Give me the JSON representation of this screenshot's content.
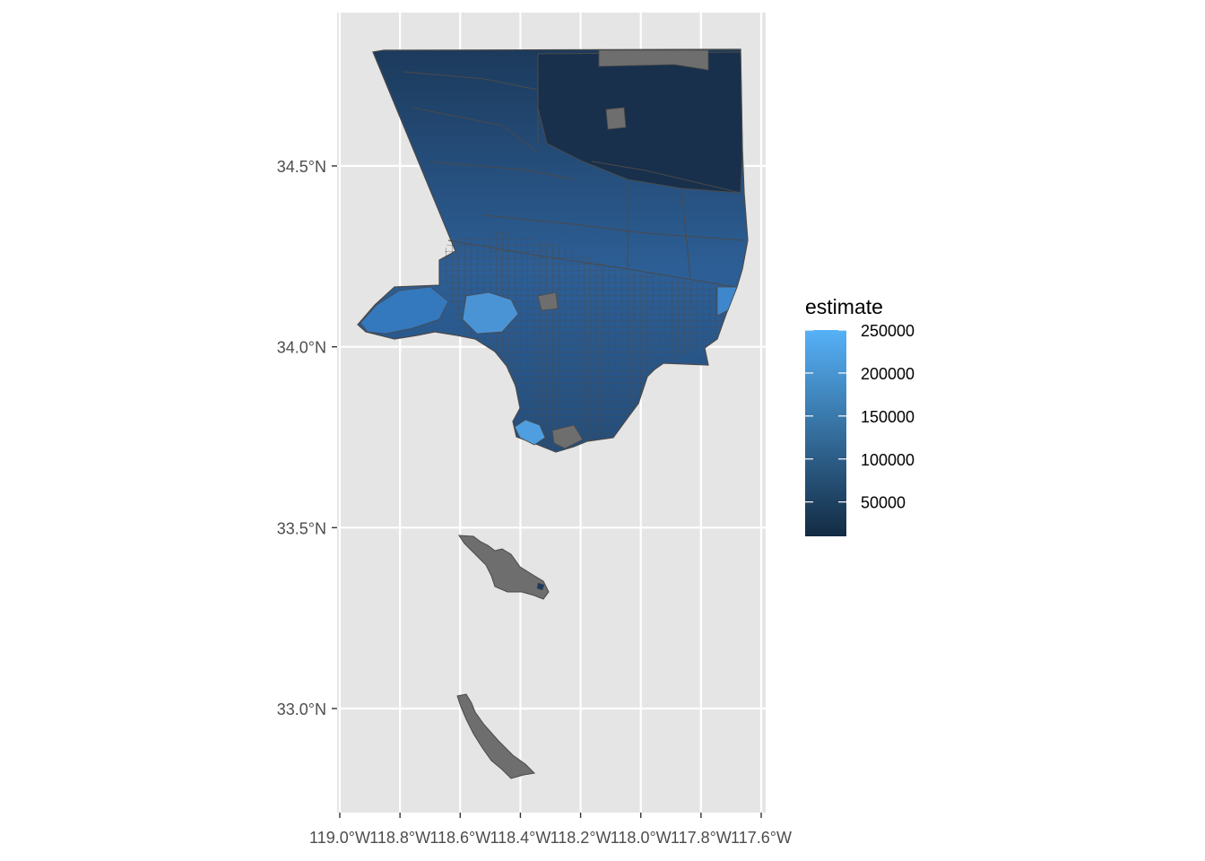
{
  "map": {
    "type": "choropleth",
    "x_ticks": [
      {
        "value": -119.0,
        "label": "119.0°W"
      },
      {
        "value": -118.8,
        "label": "118.8°W"
      },
      {
        "value": -118.6,
        "label": "118.6°W"
      },
      {
        "value": -118.4,
        "label": "118.4°W"
      },
      {
        "value": -118.2,
        "label": "118.2°W"
      },
      {
        "value": -118.0,
        "label": "118.0°W"
      },
      {
        "value": -117.8,
        "label": "117.8°W"
      },
      {
        "value": -117.6,
        "label": "117.6°W"
      }
    ],
    "y_ticks": [
      {
        "value": 34.5,
        "label": "34.5°N"
      },
      {
        "value": 34.0,
        "label": "34.0°N"
      },
      {
        "value": 33.5,
        "label": "33.5°N"
      },
      {
        "value": 33.0,
        "label": "33.0°N"
      }
    ],
    "x_range": [
      -119.0,
      -117.6
    ],
    "y_range": [
      32.72,
      34.92
    ],
    "panel_color": "#e5e5e5",
    "grid_color": "#ffffff",
    "missing_color": "#6e6e6e",
    "border_color": "#4a4a4a"
  },
  "legend": {
    "title": "estimate",
    "position": "right",
    "range": [
      10000,
      250000
    ],
    "color_low": "#132b43",
    "color_high": "#56b1f7",
    "breaks": [
      {
        "value": 250000,
        "label": "250000"
      },
      {
        "value": 200000,
        "label": "200000"
      },
      {
        "value": 150000,
        "label": "150000"
      },
      {
        "value": 100000,
        "label": "100000"
      },
      {
        "value": 50000,
        "label": "50000"
      }
    ]
  }
}
